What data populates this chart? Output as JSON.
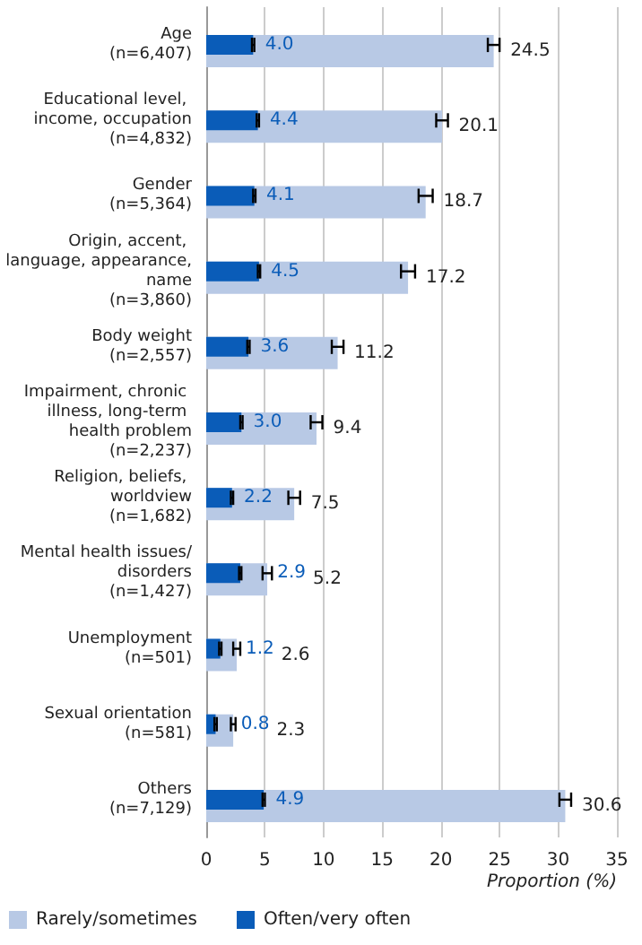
{
  "chart_data": {
    "type": "bar",
    "orientation": "horizontal",
    "xlabel": "Proportion (%)",
    "categories": [
      "Age (n=6,407)",
      "Educational level, income, occupation (n=4,832)",
      "Gender (n=5,364)",
      "Origin, accent, language, appearance, name (n=3,860)",
      "Body weight (n=2,557)",
      "Impairment, chronic illness, long-term health problem (n=2,237)",
      "Religion, beliefs, worldview (n=1,682)",
      "Mental health issues/disorders (n=1,427)",
      "Unemployment (n=501)",
      "Sexual orientation (n=581)",
      "Others (n=7,129)"
    ],
    "series": [
      {
        "name": "Rarely/sometimes",
        "color": "#b8c9e5",
        "values": [
          24.5,
          20.1,
          18.7,
          17.2,
          11.2,
          9.4,
          7.5,
          5.2,
          2.6,
          2.3,
          30.6
        ],
        "errors": [
          0.5,
          0.5,
          0.6,
          0.6,
          0.5,
          0.5,
          0.5,
          0.4,
          0.3,
          0.2,
          0.5
        ],
        "value_labels": [
          "24.5",
          "20.1",
          "18.7",
          "17.2",
          "11.2",
          "9.4",
          "7.5",
          "5.2",
          "2.6",
          "2.3",
          "30.6"
        ]
      },
      {
        "name": "Often/very often",
        "color": "#0a5cb8",
        "values": [
          4.0,
          4.4,
          4.1,
          4.5,
          3.6,
          3.0,
          2.2,
          2.9,
          1.2,
          0.8,
          4.9
        ],
        "errors": [
          0.1,
          0.1,
          0.1,
          0.1,
          0.1,
          0.1,
          0.1,
          0.1,
          0.1,
          0.1,
          0.1
        ],
        "value_labels": [
          "4.0",
          "4.4",
          "4.1",
          "4.5",
          "3.6",
          "3.0",
          "2.2",
          "2.9",
          "1.2",
          "0.8",
          "4.9"
        ]
      }
    ],
    "xlim": [
      0,
      35
    ],
    "xticks": [
      0,
      5,
      10,
      15,
      20,
      25,
      30,
      35
    ],
    "grid": "x",
    "legend": "bottom left"
  }
}
